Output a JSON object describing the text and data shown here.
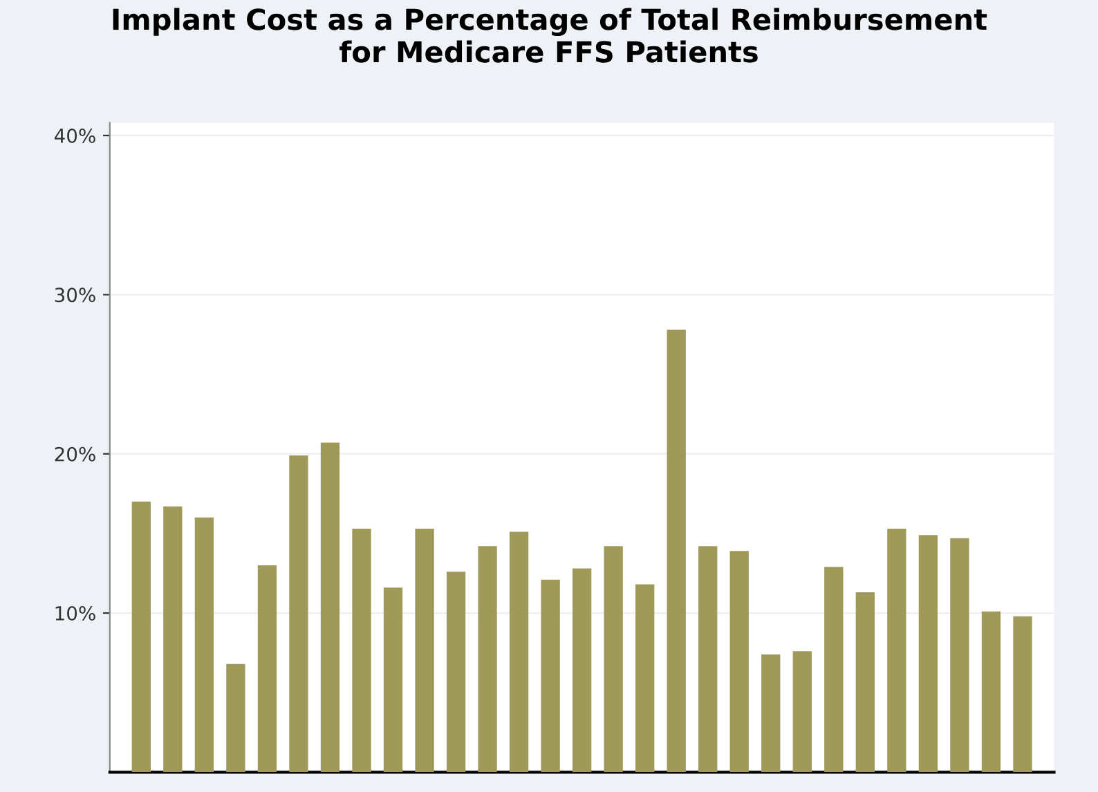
{
  "chart_data": {
    "type": "bar",
    "title": "Implant Cost as a Percentage of Total Reimbursement\nfor Medicare FFS Patients",
    "categories": [
      null,
      null,
      null,
      null,
      null,
      null,
      null,
      null,
      null,
      null,
      null,
      null,
      null,
      null,
      null,
      null,
      null,
      null,
      null,
      null,
      null,
      null,
      null,
      null,
      null,
      null,
      null,
      null,
      null
    ],
    "values": [
      17.0,
      16.7,
      16.0,
      6.8,
      13.0,
      19.9,
      20.7,
      15.3,
      11.6,
      15.3,
      12.6,
      14.2,
      15.1,
      12.1,
      12.8,
      14.2,
      11.8,
      27.8,
      14.2,
      13.9,
      7.4,
      7.6,
      12.9,
      11.3,
      15.3,
      14.9,
      14.7,
      10.1,
      9.8
    ],
    "color": "#a09a5a",
    "ylim": [
      0,
      40.8
    ],
    "yticks": [
      {
        "value": 10,
        "label": "10%"
      },
      {
        "value": 20,
        "label": "20%"
      },
      {
        "value": 30,
        "label": "30%"
      },
      {
        "value": 40,
        "label": "40%"
      }
    ],
    "grid": "y"
  }
}
